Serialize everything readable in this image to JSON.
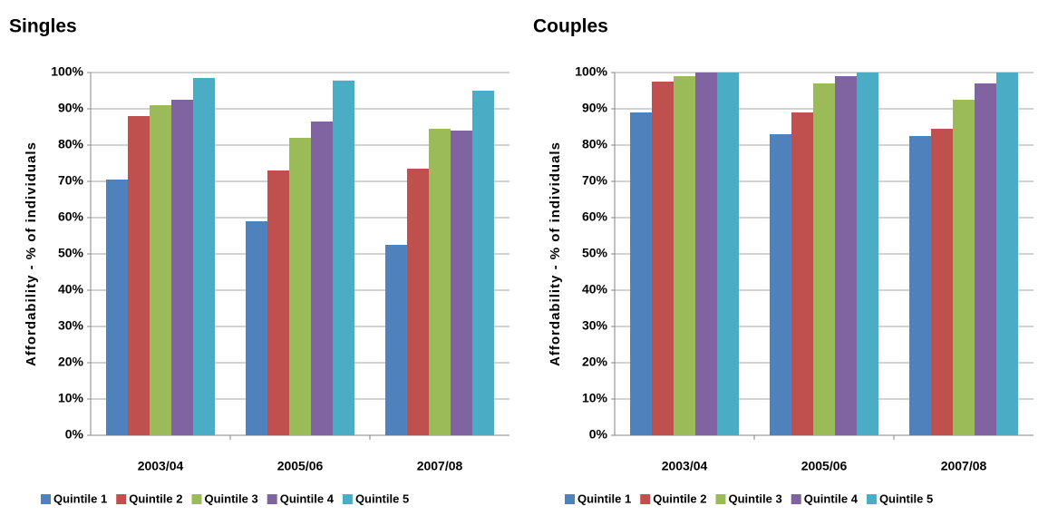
{
  "chart_data": [
    {
      "type": "bar",
      "title": "Singles",
      "y_label": "Affordability - % of individuals",
      "categories": [
        "2003/04",
        "2005/06",
        "2007/08"
      ],
      "series": [
        {
          "name": "Quintile 1",
          "color": "#4f81bd",
          "values": [
            70.5,
            59,
            52.5
          ]
        },
        {
          "name": "Quintile 2",
          "color": "#c0504d",
          "values": [
            88,
            73,
            73.5
          ]
        },
        {
          "name": "Quintile 3",
          "color": "#9bbb59",
          "values": [
            91,
            82,
            84.5
          ]
        },
        {
          "name": "Quintile 4",
          "color": "#8064a2",
          "values": [
            92.5,
            86.5,
            84
          ]
        },
        {
          "name": "Quintile 5",
          "color": "#4bacc6",
          "values": [
            98.5,
            97.8,
            95
          ]
        }
      ],
      "ylim": [
        0,
        100
      ],
      "yticks": [
        {
          "value": 0,
          "label": "0%"
        },
        {
          "value": 10,
          "label": "10%"
        },
        {
          "value": 20,
          "label": "20%"
        },
        {
          "value": 30,
          "label": "30%"
        },
        {
          "value": 40,
          "label": "40%"
        },
        {
          "value": 50,
          "label": "50%"
        },
        {
          "value": 60,
          "label": "60%"
        },
        {
          "value": 70,
          "label": "70%"
        },
        {
          "value": 80,
          "label": "80%"
        },
        {
          "value": 90,
          "label": "90%"
        },
        {
          "value": 100,
          "label": "100%"
        }
      ],
      "grid": true,
      "legend": "bottom"
    },
    {
      "type": "bar",
      "title": "Couples",
      "y_label": "Affordability - % of individuals",
      "categories": [
        "2003/04",
        "2005/06",
        "2007/08"
      ],
      "series": [
        {
          "name": "Quintile 1",
          "color": "#4f81bd",
          "values": [
            89,
            83,
            82.5
          ]
        },
        {
          "name": "Quintile 2",
          "color": "#c0504d",
          "values": [
            97.5,
            89,
            84.5
          ]
        },
        {
          "name": "Quintile 3",
          "color": "#9bbb59",
          "values": [
            99,
            97,
            92.5
          ]
        },
        {
          "name": "Quintile 4",
          "color": "#8064a2",
          "values": [
            100,
            99,
            97
          ]
        },
        {
          "name": "Quintile 5",
          "color": "#4bacc6",
          "values": [
            100,
            100,
            100
          ]
        }
      ],
      "ylim": [
        0,
        100
      ],
      "yticks": [
        {
          "value": 0,
          "label": "0%"
        },
        {
          "value": 10,
          "label": "10%"
        },
        {
          "value": 20,
          "label": "20%"
        },
        {
          "value": 30,
          "label": "30%"
        },
        {
          "value": 40,
          "label": "40%"
        },
        {
          "value": 50,
          "label": "50%"
        },
        {
          "value": 60,
          "label": "60%"
        },
        {
          "value": 70,
          "label": "70%"
        },
        {
          "value": 80,
          "label": "80%"
        },
        {
          "value": 90,
          "label": "90%"
        },
        {
          "value": 100,
          "label": "100%"
        }
      ],
      "grid": true,
      "legend": "bottom"
    }
  ]
}
